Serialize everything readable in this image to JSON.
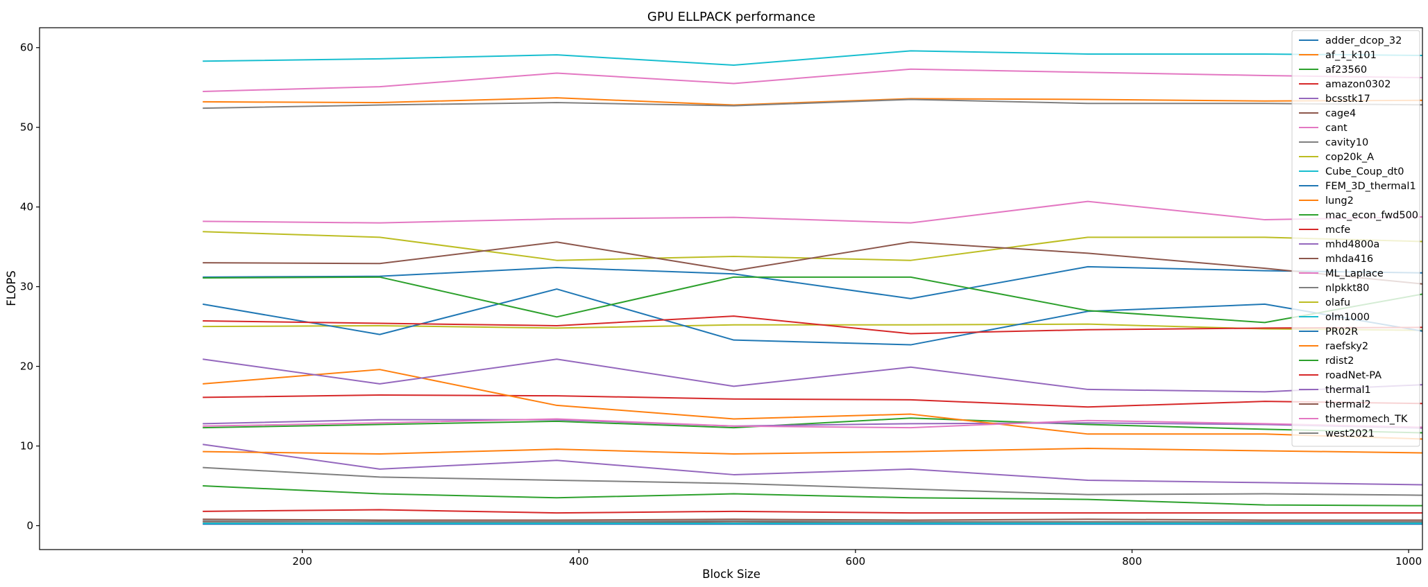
{
  "chart_data": {
    "type": "line",
    "title": "GPU ELLPACK performance",
    "xlabel": "Block Size",
    "ylabel": "FLOPS",
    "xlim": [
      10,
      1010
    ],
    "ylim": [
      -3,
      62.5
    ],
    "xticks": [
      200,
      400,
      600,
      800,
      1000
    ],
    "yticks": [
      0,
      10,
      20,
      30,
      40,
      50,
      60
    ],
    "legend_position": "top-right",
    "grid": false,
    "x": [
      128,
      256,
      384,
      512,
      640,
      768,
      896,
      1024
    ],
    "series": [
      {
        "name": "adder_dcop_32",
        "color": "#1f77b4",
        "values": [
          0.2,
          0.2,
          0.2,
          0.2,
          0.2,
          0.2,
          0.2,
          0.2
        ]
      },
      {
        "name": "af_1_k101",
        "color": "#ff7f0e",
        "values": [
          53.2,
          53.1,
          53.7,
          52.8,
          53.6,
          53.5,
          53.3,
          53.4
        ]
      },
      {
        "name": "af23560",
        "color": "#2ca02c",
        "values": [
          5.0,
          4.0,
          3.5,
          4.0,
          3.5,
          3.3,
          2.6,
          2.5
        ]
      },
      {
        "name": "amazon0302",
        "color": "#d62728",
        "values": [
          1.8,
          2.0,
          1.6,
          1.8,
          1.6,
          1.6,
          1.6,
          1.6
        ]
      },
      {
        "name": "bcsstk17",
        "color": "#9467bd",
        "values": [
          10.2,
          7.1,
          8.2,
          6.4,
          7.1,
          5.7,
          5.4,
          5.1
        ]
      },
      {
        "name": "cage4",
        "color": "#8c564b",
        "values": [
          0.5,
          0.5,
          0.4,
          0.5,
          0.4,
          0.4,
          0.4,
          0.4
        ]
      },
      {
        "name": "cant",
        "color": "#e377c2",
        "values": [
          54.5,
          55.1,
          56.8,
          55.5,
          57.3,
          56.9,
          56.5,
          56.2
        ]
      },
      {
        "name": "cavity10",
        "color": "#7f7f7f",
        "values": [
          7.3,
          6.1,
          5.7,
          5.3,
          4.6,
          3.9,
          4.0,
          3.8
        ]
      },
      {
        "name": "cop20k_A",
        "color": "#bcbd22",
        "values": [
          36.9,
          36.2,
          33.3,
          33.8,
          33.3,
          36.2,
          36.2,
          35.6
        ]
      },
      {
        "name": "Cube_Coup_dt0",
        "color": "#17becf",
        "values": [
          58.3,
          58.6,
          59.1,
          57.8,
          59.6,
          59.2,
          59.2,
          59.0
        ]
      },
      {
        "name": "FEM_3D_thermal1",
        "color": "#1f77b4",
        "values": [
          31.2,
          31.3,
          32.4,
          31.6,
          28.5,
          32.5,
          32.0,
          31.7
        ]
      },
      {
        "name": "lung2",
        "color": "#ff7f0e",
        "values": [
          9.3,
          9.0,
          9.6,
          9.0,
          9.3,
          9.7,
          9.4,
          9.1
        ]
      },
      {
        "name": "mac_econ_fwd500",
        "color": "#2ca02c",
        "values": [
          12.3,
          12.7,
          13.1,
          12.3,
          13.5,
          12.7,
          12.1,
          11.6
        ]
      },
      {
        "name": "mcfe",
        "color": "#d62728",
        "values": [
          16.1,
          16.4,
          16.3,
          15.9,
          15.8,
          14.9,
          15.6,
          15.3
        ]
      },
      {
        "name": "mhd4800a",
        "color": "#9467bd",
        "values": [
          12.8,
          13.3,
          13.3,
          12.5,
          12.8,
          12.9,
          12.7,
          12.2
        ]
      },
      {
        "name": "mhda416",
        "color": "#8c564b",
        "values": [
          33.0,
          32.9,
          35.6,
          32.0,
          35.6,
          34.2,
          32.3,
          30.1
        ]
      },
      {
        "name": "ML_Laplace",
        "color": "#e377c2",
        "values": [
          38.2,
          38.0,
          38.5,
          38.7,
          38.0,
          40.7,
          38.4,
          38.8
        ]
      },
      {
        "name": "nlpkkt80",
        "color": "#7f7f7f",
        "values": [
          52.4,
          52.8,
          53.1,
          52.7,
          53.5,
          53.0,
          53.0,
          52.8
        ]
      },
      {
        "name": "olafu",
        "color": "#bcbd22",
        "values": [
          25.0,
          25.1,
          24.8,
          25.2,
          25.2,
          25.3,
          24.7,
          24.5
        ]
      },
      {
        "name": "olm1000",
        "color": "#17becf",
        "values": [
          0.3,
          0.3,
          0.3,
          0.3,
          0.3,
          0.3,
          0.3,
          0.3
        ]
      },
      {
        "name": "PR02R",
        "color": "#1f77b4",
        "values": [
          27.8,
          24.0,
          29.7,
          23.3,
          22.7,
          26.9,
          27.8,
          24.0
        ]
      },
      {
        "name": "raefsky2",
        "color": "#ff7f0e",
        "values": [
          17.8,
          19.6,
          15.1,
          13.4,
          14.0,
          11.5,
          11.5,
          10.8
        ]
      },
      {
        "name": "rdist2",
        "color": "#2ca02c",
        "values": [
          31.1,
          31.2,
          26.2,
          31.2,
          31.2,
          27.0,
          25.5,
          29.5
        ]
      },
      {
        "name": "roadNet-PA",
        "color": "#d62728",
        "values": [
          25.7,
          25.4,
          25.1,
          26.3,
          24.1,
          24.6,
          24.8,
          24.9
        ]
      },
      {
        "name": "thermal1",
        "color": "#9467bd",
        "values": [
          20.9,
          17.8,
          20.9,
          17.5,
          19.9,
          17.1,
          16.8,
          17.8
        ]
      },
      {
        "name": "thermal2",
        "color": "#8c564b",
        "values": [
          0.8,
          0.7,
          0.7,
          0.8,
          0.7,
          0.8,
          0.7,
          0.7
        ]
      },
      {
        "name": "thermomech_TK",
        "color": "#e377c2",
        "values": [
          12.5,
          12.9,
          13.4,
          12.5,
          12.3,
          13.2,
          12.8,
          12.3
        ]
      },
      {
        "name": "west2021",
        "color": "#7f7f7f",
        "values": [
          0.6,
          0.5,
          0.5,
          0.6,
          0.5,
          0.5,
          0.5,
          0.5
        ]
      }
    ]
  }
}
